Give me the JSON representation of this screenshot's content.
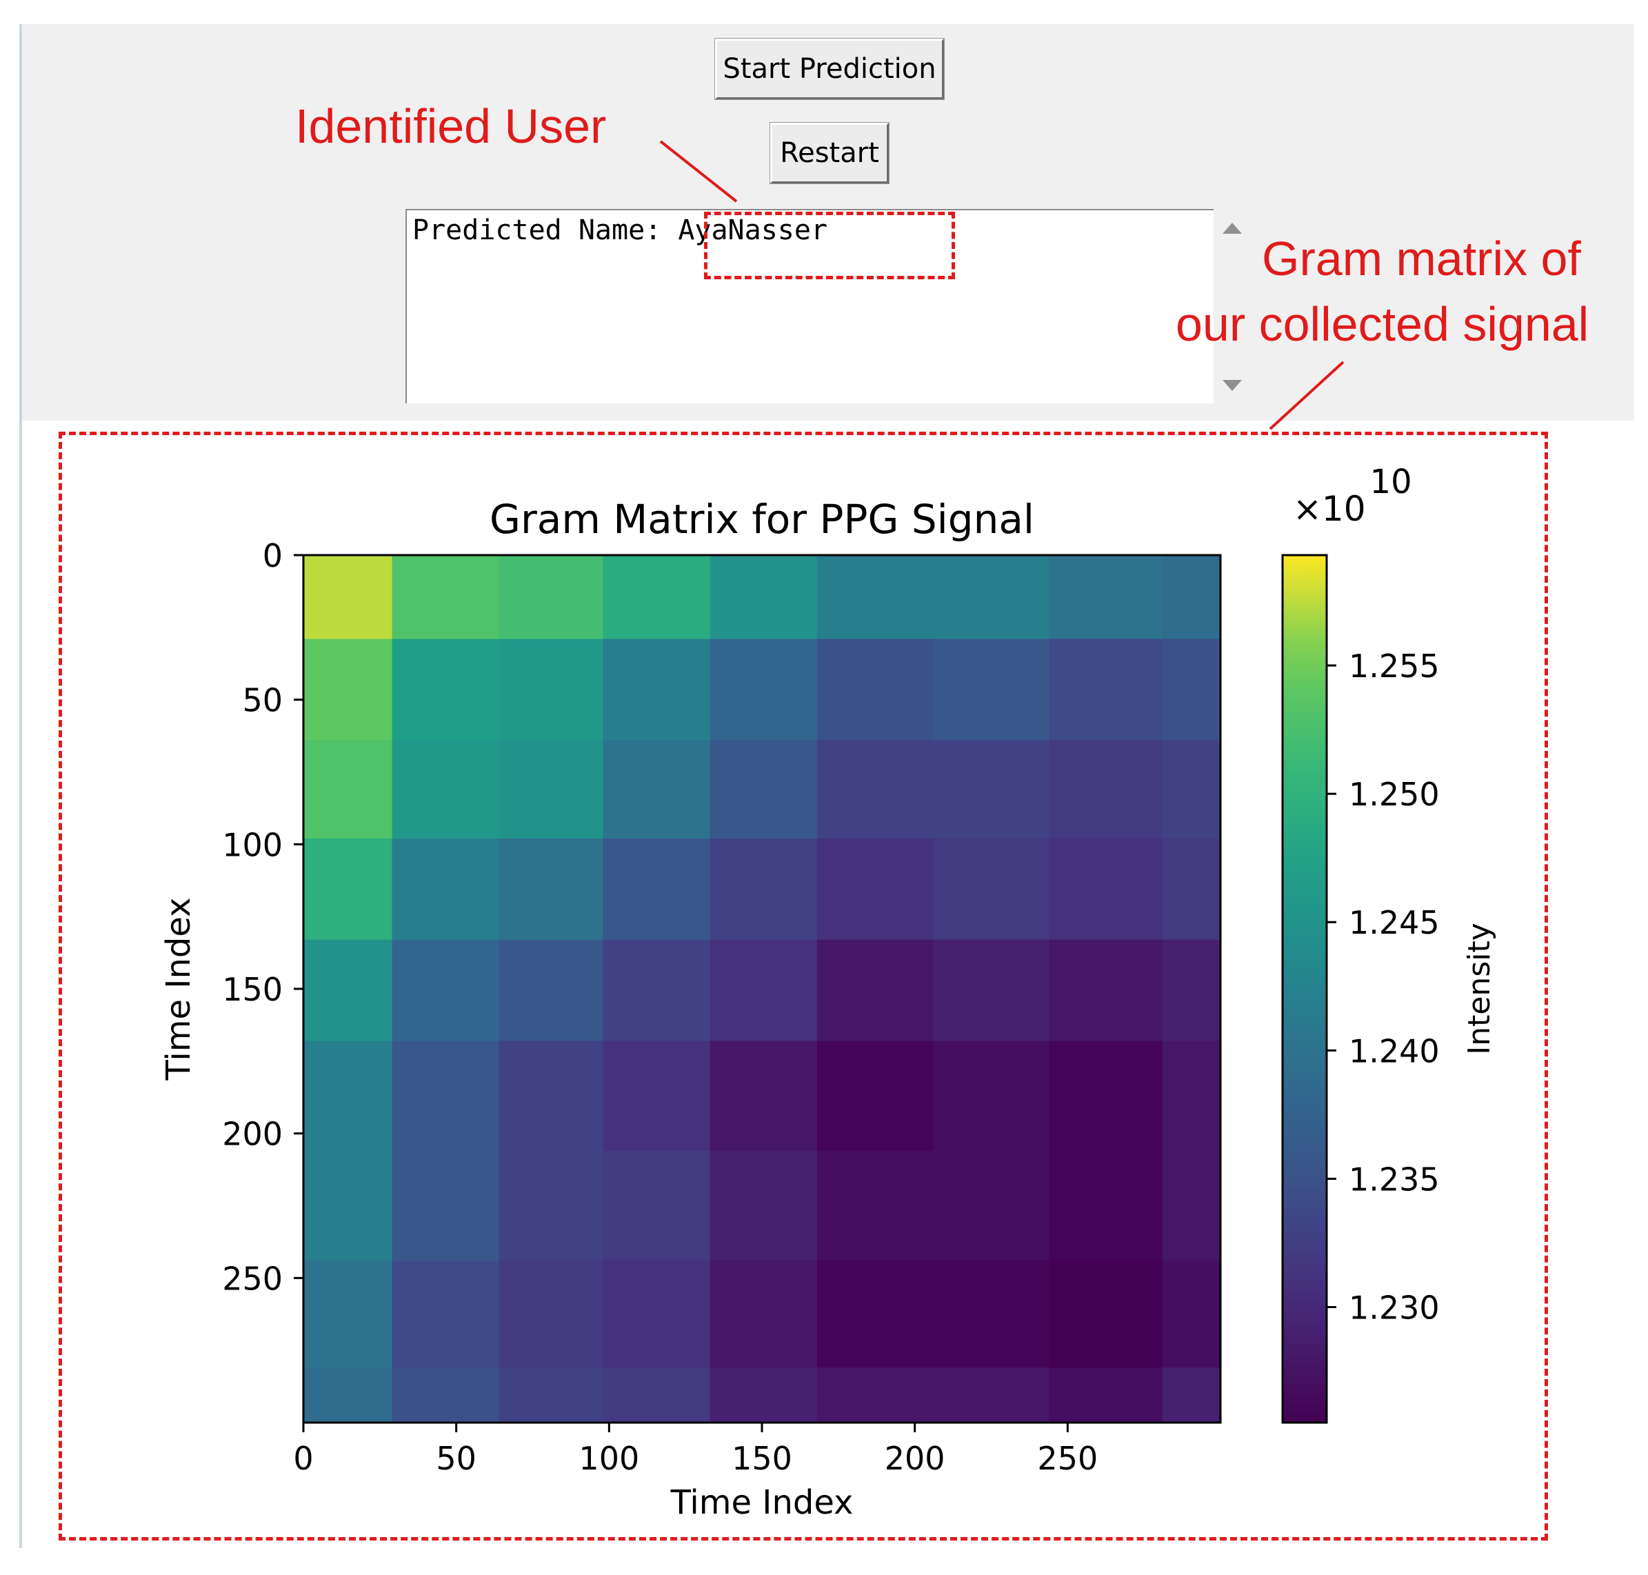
{
  "app": {
    "start_button_label": "Start Prediction",
    "restart_button_label": "Restart",
    "output_text": "Predicted Name: AyaNasser"
  },
  "annotations": {
    "identified_user": "Identified User",
    "gram_line1": "Gram matrix of",
    "gram_line2": "our  collected signal",
    "color": "#e01b1b"
  },
  "icons": {
    "scroll_up": "scroll-up-arrow-icon",
    "scroll_down": "scroll-down-arrow-icon"
  },
  "chart_data": {
    "type": "heatmap",
    "title": "Gram Matrix for PPG Signal",
    "xlabel": "Time Index",
    "ylabel": "Time Index",
    "x_range": [
      0,
      300
    ],
    "y_range": [
      0,
      300
    ],
    "y_inverted": true,
    "x_ticks": [
      0,
      50,
      100,
      150,
      200,
      250
    ],
    "y_ticks": [
      0,
      50,
      100,
      150,
      200,
      250
    ],
    "x_tick_labels": [
      "0",
      "50",
      "100",
      "150",
      "200",
      "250"
    ],
    "y_tick_labels": [
      "0",
      "50",
      "100",
      "150",
      "200",
      "250"
    ],
    "colormap": "viridis",
    "colorbar": {
      "label": "Intensity",
      "multiplier_base": "×10",
      "multiplier_exponent": "10",
      "range": [
        1.2255,
        1.2593
      ],
      "ticks": [
        1.23,
        1.235,
        1.24,
        1.245,
        1.25,
        1.255
      ],
      "tick_labels": [
        "1.230",
        "1.235",
        "1.240",
        "1.245",
        "1.250",
        "1.255"
      ]
    },
    "block_boundaries": [
      0,
      29,
      64,
      98,
      133,
      168,
      206,
      244,
      281,
      300
    ],
    "block_values_e10": [
      [
        1.2575,
        1.253,
        1.252,
        1.249,
        1.245,
        1.242,
        1.242,
        1.24,
        1.239
      ],
      [
        1.254,
        1.247,
        1.246,
        1.242,
        1.238,
        1.235,
        1.236,
        1.234,
        1.235
      ],
      [
        1.253,
        1.246,
        1.245,
        1.24,
        1.236,
        1.233,
        1.233,
        1.232,
        1.233
      ],
      [
        1.2495,
        1.242,
        1.24,
        1.236,
        1.233,
        1.231,
        1.232,
        1.231,
        1.232
      ],
      [
        1.245,
        1.238,
        1.236,
        1.233,
        1.231,
        1.228,
        1.229,
        1.228,
        1.229
      ],
      [
        1.242,
        1.236,
        1.233,
        1.231,
        1.228,
        1.226,
        1.227,
        1.226,
        1.228
      ],
      [
        1.242,
        1.236,
        1.233,
        1.232,
        1.229,
        1.227,
        1.227,
        1.226,
        1.228
      ],
      [
        1.24,
        1.234,
        1.232,
        1.231,
        1.228,
        1.226,
        1.226,
        1.2255,
        1.227
      ],
      [
        1.239,
        1.235,
        1.233,
        1.232,
        1.229,
        1.228,
        1.228,
        1.227,
        1.229
      ]
    ]
  }
}
